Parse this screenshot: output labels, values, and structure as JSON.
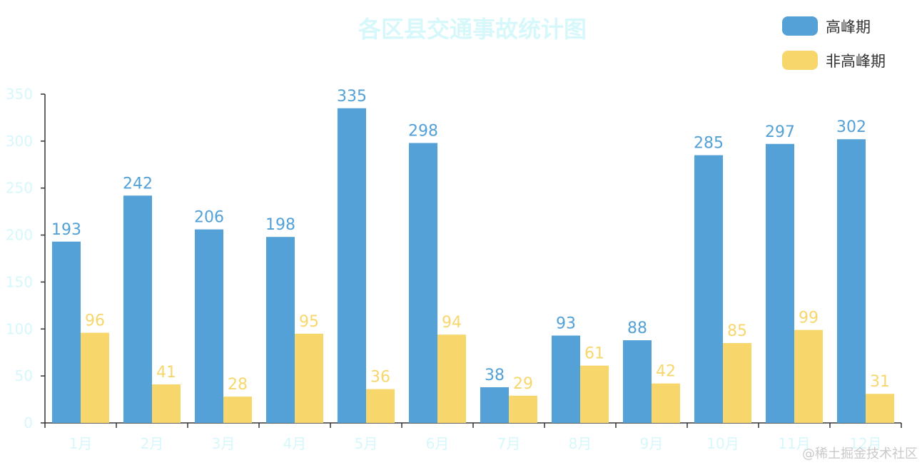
{
  "chart_data": {
    "type": "bar",
    "title": "各区县交通事故统计图",
    "categories": [
      "1月",
      "2月",
      "3月",
      "4月",
      "5月",
      "6月",
      "7月",
      "8月",
      "9月",
      "10月",
      "11月",
      "12月"
    ],
    "series": [
      {
        "name": "高峰期",
        "color": "#53a1d6",
        "values": [
          193,
          242,
          206,
          198,
          335,
          298,
          38,
          93,
          88,
          285,
          297,
          302
        ]
      },
      {
        "name": "非高峰期",
        "color": "#f7d76c",
        "values": [
          96,
          41,
          28,
          95,
          36,
          94,
          29,
          61,
          42,
          85,
          99,
          31
        ]
      }
    ],
    "ylim": [
      0,
      350
    ],
    "yticks": [
      0,
      50,
      100,
      150,
      200,
      250,
      300,
      350
    ],
    "legend_position": "top-right",
    "grid": false,
    "label_color": "#d6f8fb",
    "title_color": "#d6f8fb"
  },
  "watermark": "@稀土掘金技术社区"
}
